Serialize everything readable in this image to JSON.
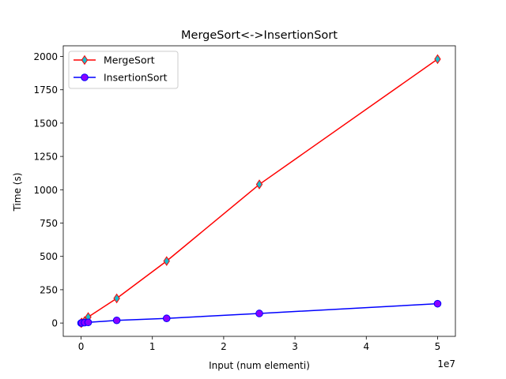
{
  "chart_data": {
    "type": "line",
    "title": "MergeSort<->InsertionSort",
    "xlabel": "Input (num elementi)",
    "ylabel": "Time (s)",
    "x_offset_label": "1e7",
    "xlim": [
      -2500000,
      52500000
    ],
    "ylim": [
      -100,
      2080
    ],
    "x_ticks": [
      0,
      10000000,
      20000000,
      30000000,
      40000000,
      50000000
    ],
    "x_tick_labels": [
      "0",
      "1",
      "2",
      "3",
      "4",
      "5"
    ],
    "y_ticks": [
      0,
      250,
      500,
      750,
      1000,
      1250,
      1500,
      1750,
      2000
    ],
    "y_tick_labels": [
      "0",
      "250",
      "500",
      "750",
      "1000",
      "1250",
      "1500",
      "1750",
      "2000"
    ],
    "grid": false,
    "legend_position": "top-left",
    "series": [
      {
        "name": "MergeSort",
        "color": "#ff0000",
        "marker": "thin-diamond",
        "marker_face": "#17becf",
        "marker_edge": "#ff0000",
        "x": [
          0,
          100000,
          500000,
          1000000,
          5000000,
          12000000,
          25000000,
          50000000
        ],
        "y": [
          0,
          3,
          15,
          45,
          185,
          465,
          1040,
          1980
        ]
      },
      {
        "name": "InsertionSort",
        "color": "#0000ff",
        "marker": "circle",
        "marker_face": "#8a00ff",
        "marker_edge": "#0000ff",
        "x": [
          0,
          100000,
          500000,
          1000000,
          5000000,
          12000000,
          25000000,
          50000000
        ],
        "y": [
          0,
          1,
          3,
          5,
          20,
          35,
          72,
          145
        ]
      }
    ]
  }
}
